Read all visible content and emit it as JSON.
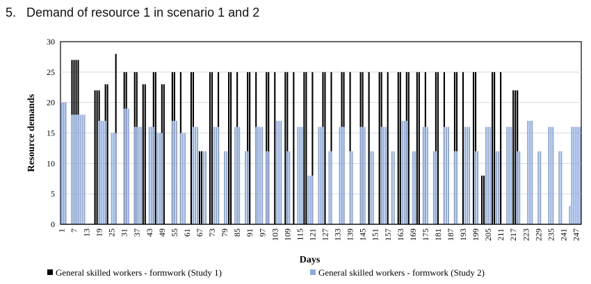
{
  "title": "5.   Demand of resource 1 in scenario 1 and 2",
  "chart_data": {
    "type": "bar",
    "xlabel": "Days",
    "ylabel": "Resource demands",
    "xlim": [
      1,
      249
    ],
    "ylim": [
      0,
      30
    ],
    "y_ticks": [
      0,
      5,
      10,
      15,
      20,
      25,
      30
    ],
    "x_ticks": [
      1,
      7,
      13,
      19,
      25,
      31,
      37,
      43,
      49,
      55,
      61,
      67,
      73,
      79,
      85,
      91,
      97,
      103,
      109,
      115,
      121,
      127,
      133,
      139,
      145,
      151,
      157,
      163,
      169,
      175,
      181,
      187,
      193,
      199,
      205,
      211,
      217,
      223,
      229,
      235,
      241,
      247
    ],
    "grid": true,
    "legend_position": "bottom",
    "series": [
      {
        "name": "General skilled workers - formwork (Study 1)",
        "color": "#000000",
        "runs": [
          [
            1,
            3,
            20
          ],
          [
            6,
            9,
            27
          ],
          [
            17,
            19,
            22
          ],
          [
            22,
            23,
            23
          ],
          [
            27,
            27,
            28
          ],
          [
            31,
            32,
            25
          ],
          [
            36,
            37,
            25
          ],
          [
            40,
            41,
            23
          ],
          [
            45,
            46,
            25
          ],
          [
            49,
            50,
            23
          ],
          [
            54,
            55,
            25
          ],
          [
            58,
            58,
            25
          ],
          [
            63,
            64,
            25
          ],
          [
            67,
            68,
            12
          ],
          [
            72,
            73,
            25
          ],
          [
            76,
            76,
            25
          ],
          [
            81,
            82,
            25
          ],
          [
            85,
            85,
            25
          ],
          [
            90,
            91,
            25
          ],
          [
            94,
            94,
            25
          ],
          [
            99,
            100,
            25
          ],
          [
            103,
            103,
            25
          ],
          [
            108,
            109,
            25
          ],
          [
            112,
            112,
            25
          ],
          [
            117,
            118,
            25
          ],
          [
            121,
            121,
            25
          ],
          [
            126,
            127,
            25
          ],
          [
            130,
            130,
            25
          ],
          [
            135,
            136,
            25
          ],
          [
            139,
            139,
            25
          ],
          [
            144,
            145,
            25
          ],
          [
            148,
            148,
            25
          ],
          [
            153,
            154,
            25
          ],
          [
            157,
            157,
            25
          ],
          [
            162,
            163,
            25
          ],
          [
            166,
            167,
            25
          ],
          [
            171,
            172,
            25
          ],
          [
            175,
            175,
            25
          ],
          [
            180,
            181,
            25
          ],
          [
            184,
            184,
            25
          ],
          [
            189,
            190,
            25
          ],
          [
            193,
            193,
            25
          ],
          [
            198,
            199,
            25
          ],
          [
            202,
            203,
            8
          ],
          [
            207,
            208,
            25
          ],
          [
            211,
            211,
            25
          ],
          [
            217,
            219,
            22
          ]
        ]
      },
      {
        "name": "General skilled workers - formwork (Study 2)",
        "color": "#8eaadb",
        "runs": [
          [
            1,
            3,
            20
          ],
          [
            6,
            12,
            18
          ],
          [
            19,
            22,
            17
          ],
          [
            25,
            27,
            15
          ],
          [
            31,
            33,
            19
          ],
          [
            36,
            39,
            16
          ],
          [
            43,
            45,
            16
          ],
          [
            47,
            49,
            15
          ],
          [
            54,
            56,
            17
          ],
          [
            58,
            60,
            15
          ],
          [
            64,
            66,
            16
          ],
          [
            69,
            70,
            12
          ],
          [
            74,
            76,
            16
          ],
          [
            79,
            80,
            12
          ],
          [
            84,
            86,
            16
          ],
          [
            89,
            90,
            12
          ],
          [
            94,
            97,
            16
          ],
          [
            99,
            100,
            12
          ],
          [
            104,
            106,
            17
          ],
          [
            109,
            110,
            12
          ],
          [
            114,
            116,
            16
          ],
          [
            119,
            121,
            8
          ],
          [
            124,
            126,
            16
          ],
          [
            129,
            130,
            12
          ],
          [
            134,
            136,
            16
          ],
          [
            139,
            140,
            12
          ],
          [
            144,
            146,
            16
          ],
          [
            149,
            150,
            12
          ],
          [
            154,
            156,
            16
          ],
          [
            159,
            160,
            12
          ],
          [
            164,
            166,
            17
          ],
          [
            169,
            170,
            12
          ],
          [
            174,
            176,
            16
          ],
          [
            179,
            180,
            12
          ],
          [
            184,
            186,
            16
          ],
          [
            189,
            190,
            12
          ],
          [
            194,
            196,
            16
          ],
          [
            199,
            200,
            12
          ],
          [
            204,
            206,
            16
          ],
          [
            209,
            210,
            12
          ],
          [
            214,
            216,
            16
          ],
          [
            219,
            220,
            12
          ],
          [
            224,
            226,
            17
          ],
          [
            229,
            230,
            12
          ],
          [
            234,
            236,
            16
          ],
          [
            239,
            240,
            12
          ],
          [
            244,
            244,
            3
          ],
          [
            245,
            249,
            16
          ]
        ]
      }
    ]
  }
}
